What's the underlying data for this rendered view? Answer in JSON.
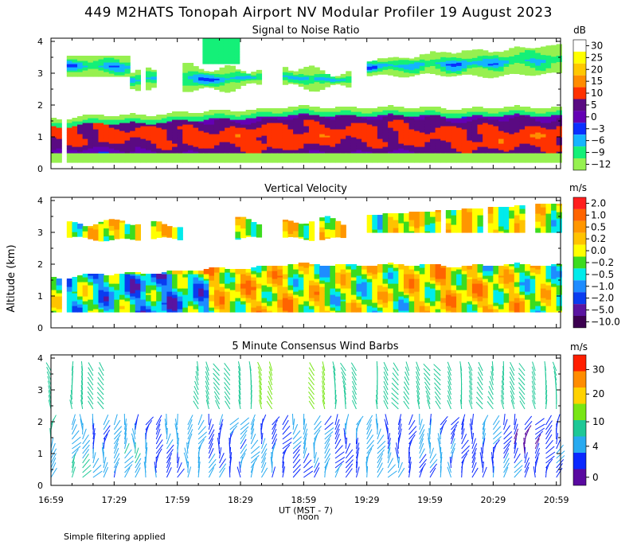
{
  "title": "449 M2HATS Tonopah Airport NV Modular Profiler 19 August 2023",
  "ylabel": "Altitude (km)",
  "xlabel": "UT  (MST - 7)",
  "noon_label": "noon",
  "footer": "Simple filtering applied",
  "x_tick_labels": [
    "16:59",
    "17:29",
    "17:59",
    "18:29",
    "18:59",
    "19:29",
    "19:59",
    "20:29",
    "20:59"
  ],
  "y_tick_labels": [
    "0",
    "1",
    "2",
    "3",
    "4"
  ],
  "panels": [
    {
      "title": "Signal to Noise Ratio",
      "unit": "dB",
      "levels": [
        "30",
        "25",
        "20",
        "15",
        "10",
        "5",
        "0",
        "−3",
        "−6",
        "−9",
        "−12"
      ]
    },
    {
      "title": "Vertical Velocity",
      "unit": "m/s",
      "levels": [
        "2.0",
        "1.0",
        "0.5",
        "0.2",
        "0.0",
        "−0.2",
        "−0.5",
        "−1.0",
        "−2.0",
        "−5.0",
        "−10.0"
      ]
    },
    {
      "title": "5 Minute Consensus Wind Barbs",
      "unit": "m/s",
      "levels": [
        "30",
        "20",
        "10",
        "4",
        "0"
      ]
    }
  ],
  "colors": {
    "snr": [
      "#ffffff",
      "#ffff00",
      "#ffc800",
      "#ff8c00",
      "#ff3200",
      "#5a0a82",
      "#6400b4",
      "#0a2fff",
      "#14b4ff",
      "#14f078",
      "#96f050"
    ],
    "vv": [
      "#ff1e1e",
      "#ff6400",
      "#ff9600",
      "#ffc300",
      "#ffff00",
      "#3cdc1e",
      "#00ebeb",
      "#1e8cff",
      "#0a3cf0",
      "#5a14a0",
      "#3c0050"
    ],
    "wind": [
      "#ff1e00",
      "#ff8c00",
      "#ffd200",
      "#78e614",
      "#1ec896",
      "#28aaf0",
      "#0a28ff",
      "#5a0aa0"
    ]
  },
  "chart_data": [
    {
      "type": "heatmap",
      "title": "Signal to Noise Ratio",
      "xlabel": "UT  (MST - 7)",
      "ylabel": "Altitude (km)",
      "x_range": [
        "16:59",
        "21:01"
      ],
      "ylim": [
        0,
        4.1
      ],
      "units": "dB",
      "color_levels": [
        30,
        25,
        20,
        15,
        10,
        5,
        0,
        -3,
        -6,
        -9,
        -12
      ],
      "features": {
        "strong_band_km": [
          0.6,
          1.4
        ],
        "band_top_km": 1.95,
        "upper_echo_km": [
          2.6,
          3.9
        ]
      }
    },
    {
      "type": "heatmap",
      "title": "Vertical Velocity",
      "xlabel": "UT  (MST - 7)",
      "ylabel": "Altitude (km)",
      "x_range": [
        "16:59",
        "21:01"
      ],
      "ylim": [
        0,
        4.1
      ],
      "units": "m/s",
      "color_levels": [
        2.0,
        1.0,
        0.5,
        0.2,
        0.0,
        -0.2,
        -0.5,
        -1.0,
        -2.0,
        -5.0,
        -10.0
      ],
      "features": {
        "lower_layer_km": [
          0.5,
          2.0
        ],
        "upper_layer_km": [
          2.7,
          3.9
        ]
      }
    },
    {
      "type": "scatter",
      "title": "5 Minute Consensus Wind Barbs",
      "xlabel": "UT  (MST - 7)",
      "ylabel": "Altitude (km)",
      "x_range": [
        "16:59",
        "21:01"
      ],
      "ylim": [
        0,
        4.1
      ],
      "units": "m/s",
      "speed_levels": [
        30,
        20,
        10,
        4,
        0
      ],
      "interval_minutes": 5,
      "lower_layer_km": [
        0.2,
        2.0
      ],
      "upper_layer_km": [
        2.3,
        3.7
      ]
    }
  ]
}
